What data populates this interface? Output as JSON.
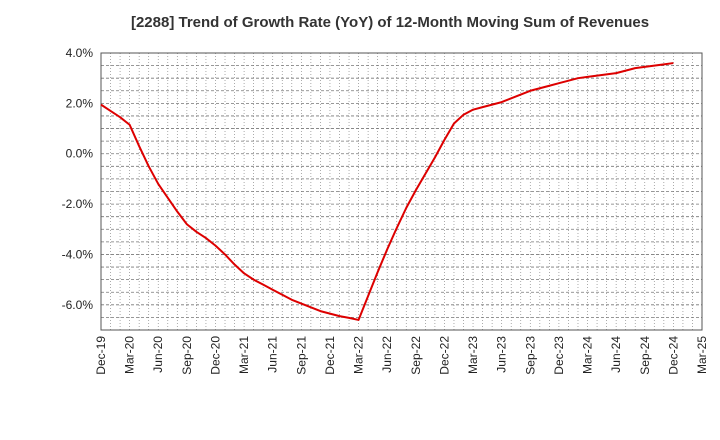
{
  "chart_data": {
    "type": "line",
    "title": "[2288]  Trend of Growth Rate (YoY) of 12-Month Moving Sum of Revenues",
    "xlabel": "",
    "ylabel": "",
    "x_ticks": [
      "Dec-19",
      "Mar-20",
      "Jun-20",
      "Sep-20",
      "Dec-20",
      "Mar-21",
      "Jun-21",
      "Sep-21",
      "Dec-21",
      "Mar-22",
      "Jun-22",
      "Sep-22",
      "Dec-22",
      "Mar-23",
      "Jun-23",
      "Sep-23",
      "Dec-23",
      "Mar-24",
      "Jun-24",
      "Sep-24",
      "Dec-24",
      "Mar-25"
    ],
    "y_ticks": [
      "4.0%",
      "2.0%",
      "0.0%",
      "-2.0%",
      "-4.0%",
      "-6.0%"
    ],
    "y_tick_values": [
      4.0,
      2.0,
      0.0,
      -2.0,
      -4.0,
      -6.0
    ],
    "ylim": [
      -7.0,
      4.0
    ],
    "grid": true,
    "line_color": "#dd0000",
    "series": [
      {
        "x": [
          "Dec-19",
          "Jan-20",
          "Feb-20",
          "Mar-20",
          "Apr-20",
          "May-20",
          "Jun-20",
          "Jul-20",
          "Aug-20",
          "Sep-20",
          "Oct-20",
          "Nov-20",
          "Dec-20",
          "Jan-21",
          "Feb-21",
          "Mar-21",
          "Apr-21",
          "May-21",
          "Jun-21",
          "Jul-21",
          "Aug-21",
          "Sep-21",
          "Oct-21",
          "Nov-21",
          "Dec-21",
          "Jan-22",
          "Feb-22",
          "Mar-22",
          "Apr-22",
          "May-22",
          "Jun-22",
          "Jul-22",
          "Aug-22",
          "Sep-22",
          "Oct-22",
          "Nov-22",
          "Dec-22",
          "Jan-23",
          "Feb-23",
          "Mar-23",
          "Apr-23",
          "May-23",
          "Jun-23",
          "Jul-23",
          "Aug-23",
          "Sep-23",
          "Oct-23",
          "Nov-23",
          "Dec-23",
          "Jan-24",
          "Feb-24",
          "Mar-24",
          "Apr-24",
          "May-24",
          "Jun-24",
          "Jul-24",
          "Aug-24",
          "Sep-24",
          "Oct-24",
          "Nov-24",
          "Dec-24"
        ],
        "values": [
          1.95,
          1.7,
          1.45,
          1.15,
          0.3,
          -0.5,
          -1.2,
          -1.75,
          -2.3,
          -2.8,
          -3.1,
          -3.35,
          -3.65,
          -4.0,
          -4.4,
          -4.75,
          -5.0,
          -5.2,
          -5.4,
          -5.6,
          -5.8,
          -5.95,
          -6.1,
          -6.25,
          -6.35,
          -6.45,
          -6.52,
          -6.6,
          -5.65,
          -4.7,
          -3.8,
          -2.95,
          -2.15,
          -1.45,
          -0.8,
          -0.15,
          0.55,
          1.2,
          1.55,
          1.75,
          1.85,
          1.95,
          2.05,
          2.2,
          2.35,
          2.5,
          2.6,
          2.7,
          2.8,
          2.9,
          3.0,
          3.05,
          3.1,
          3.15,
          3.2,
          3.3,
          3.4,
          3.45,
          3.5,
          3.55,
          3.6
        ]
      }
    ]
  }
}
